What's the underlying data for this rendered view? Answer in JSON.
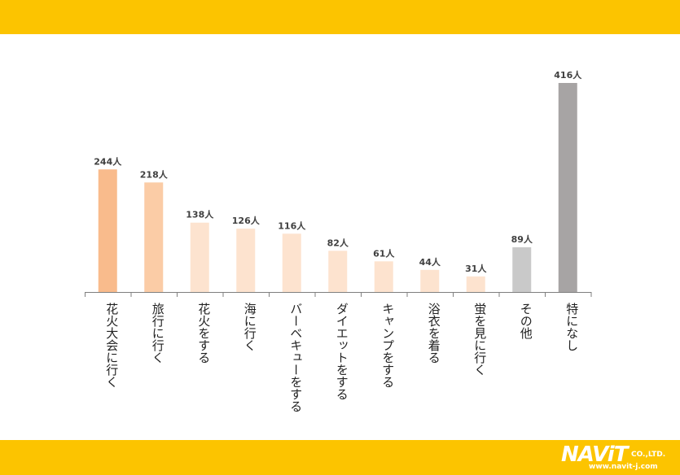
{
  "chart_data": {
    "type": "bar",
    "categories": [
      "花火大会に行く",
      "旅行に行く",
      "花火をする",
      "海に行く",
      "バーベキューをする",
      "ダイエットをする",
      "キャンプをする",
      "浴衣を着る",
      "蛍を見に行く",
      "その他",
      "特になし"
    ],
    "values": [
      244,
      218,
      138,
      126,
      116,
      82,
      61,
      44,
      31,
      89,
      416
    ],
    "value_labels": [
      "244人",
      "218人",
      "138人",
      "126人",
      "116人",
      "82人",
      "61人",
      "44人",
      "31人",
      "89人",
      "416人"
    ],
    "colors": [
      "#f9bb8c",
      "#fbcca6",
      "#fde3cf",
      "#fde3cf",
      "#fde3cf",
      "#fde3cf",
      "#fde3cf",
      "#fde3cf",
      "#fde3cf",
      "#c9c9c9",
      "#a7a4a4"
    ],
    "title": "",
    "xlabel": "",
    "ylabel": "",
    "ylim": [
      0,
      416
    ],
    "grid": false,
    "legend": "none"
  },
  "brand": {
    "logo_text": "NAViT",
    "logo_suffix": "CO.,LTD.",
    "url": "www.navit-j.com"
  }
}
